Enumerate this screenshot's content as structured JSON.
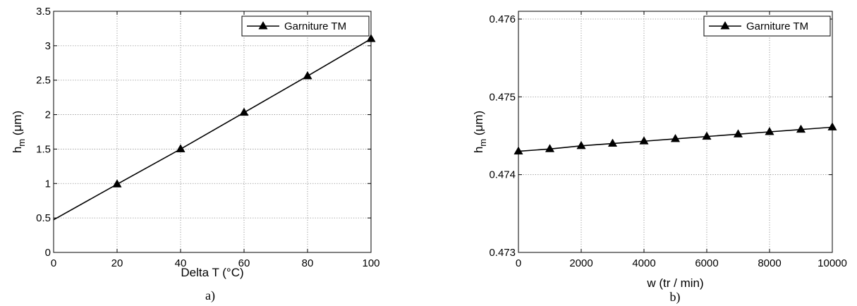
{
  "chart_data": [
    {
      "type": "line",
      "panel_label": "a)",
      "xlabel": "Delta T (°C)",
      "ylabel_main": "h",
      "ylabel_sub": "m",
      "ylabel_unit": " (μm)",
      "xlim": [
        0,
        100
      ],
      "ylim": [
        0,
        3.5
      ],
      "xticks": [
        0,
        20,
        40,
        60,
        80,
        100
      ],
      "xtick_labels": [
        "0",
        "20",
        "40",
        "60",
        "80",
        "100"
      ],
      "yticks": [
        0,
        0.5,
        1,
        1.5,
        2,
        2.5,
        3,
        3.5
      ],
      "ytick_labels": [
        "0",
        "0.5",
        "1",
        "1.5",
        "2",
        "2.5",
        "3",
        "3.5"
      ],
      "grid": true,
      "legend_position": "top-right",
      "series": [
        {
          "name": "Garniture TM",
          "color": "#000000",
          "marker": "triangle",
          "x": [
            0,
            20,
            40,
            60,
            80,
            100
          ],
          "y": [
            0.474,
            0.99,
            1.5,
            2.03,
            2.56,
            3.1
          ],
          "marker_indices": [
            1,
            2,
            3,
            4,
            5
          ]
        }
      ]
    },
    {
      "type": "line",
      "panel_label": "b)",
      "xlabel": "w (tr / min)",
      "ylabel_main": "h",
      "ylabel_sub": "m",
      "ylabel_unit": " (μm)",
      "xlim": [
        0,
        10000
      ],
      "ylim": [
        0.473,
        0.4761
      ],
      "xticks": [
        0,
        2000,
        4000,
        6000,
        8000,
        10000
      ],
      "xtick_labels": [
        "0",
        "2000",
        "4000",
        "6000",
        "8000",
        "10000"
      ],
      "yticks": [
        0.473,
        0.474,
        0.475,
        0.476
      ],
      "ytick_labels": [
        "0.473",
        "0.474",
        "0.475",
        "0.476"
      ],
      "grid": true,
      "legend_position": "top-right",
      "series": [
        {
          "name": "Garniture TM",
          "color": "#000000",
          "marker": "triangle",
          "x": [
            0,
            1000,
            2000,
            3000,
            4000,
            5000,
            6000,
            7000,
            8000,
            9000,
            10000
          ],
          "y": [
            0.4743,
            0.47433,
            0.47437,
            0.4744,
            0.47443,
            0.47446,
            0.47449,
            0.47452,
            0.47455,
            0.47458,
            0.47461
          ],
          "marker_indices": [
            0,
            1,
            2,
            3,
            4,
            5,
            6,
            7,
            8,
            9,
            10
          ]
        }
      ]
    }
  ]
}
